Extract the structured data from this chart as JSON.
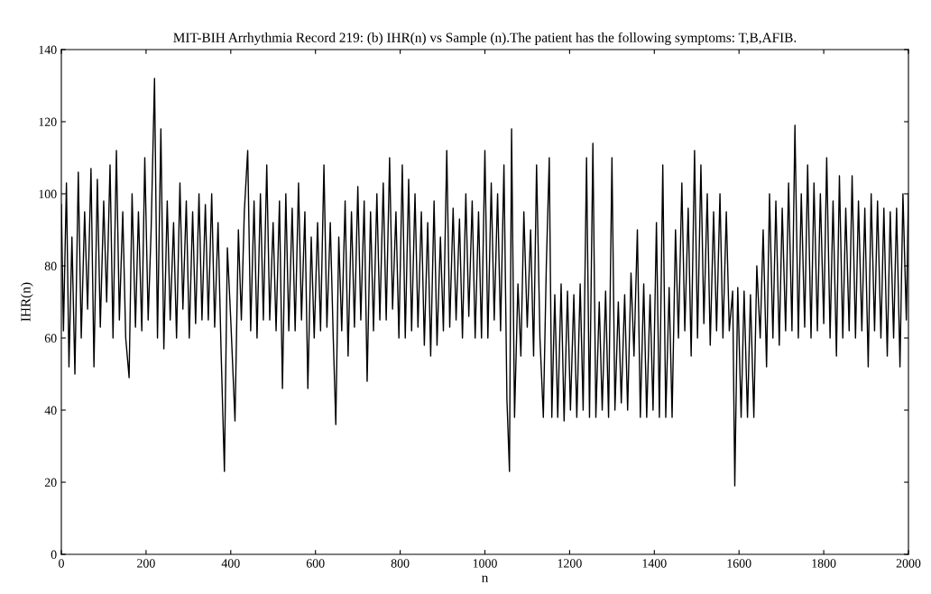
{
  "chart_data": {
    "type": "line",
    "title": "MIT-BIH Arrhythmia Record 219: (b) IHR(n) vs Sample (n).The patient has the following symptoms: T,B,AFIB.",
    "xlabel": "n",
    "ylabel": "IHR(n)",
    "xlim": [
      0,
      2000
    ],
    "ylim": [
      0,
      140
    ],
    "xticks": [
      0,
      200,
      400,
      600,
      800,
      1000,
      1200,
      1400,
      1600,
      1800,
      2000
    ],
    "yticks": [
      0,
      20,
      40,
      60,
      80,
      100,
      120,
      140
    ],
    "grid": false,
    "legend": false,
    "marker": "none",
    "line_style": "solid",
    "series": [
      {
        "color": "#000000",
        "x": [
          0,
          5,
          12,
          18,
          25,
          32,
          40,
          47,
          55,
          62,
          70,
          77,
          85,
          92,
          100,
          107,
          115,
          122,
          130,
          137,
          145,
          152,
          160,
          167,
          175,
          182,
          190,
          197,
          205,
          212,
          220,
          227,
          235,
          242,
          250,
          257,
          265,
          272,
          280,
          287,
          295,
          302,
          310,
          317,
          325,
          332,
          340,
          347,
          355,
          362,
          370,
          377,
          385,
          392,
          400,
          410,
          418,
          425,
          432,
          440,
          447,
          455,
          462,
          470,
          477,
          485,
          492,
          500,
          507,
          515,
          522,
          530,
          537,
          545,
          552,
          560,
          567,
          575,
          582,
          590,
          597,
          605,
          612,
          620,
          627,
          635,
          642,
          648,
          655,
          662,
          670,
          677,
          685,
          692,
          700,
          707,
          715,
          722,
          730,
          737,
          745,
          752,
          760,
          767,
          775,
          782,
          790,
          797,
          805,
          812,
          820,
          827,
          835,
          842,
          850,
          857,
          865,
          872,
          880,
          887,
          895,
          902,
          910,
          917,
          925,
          932,
          940,
          947,
          955,
          962,
          970,
          977,
          985,
          992,
          1000,
          1007,
          1015,
          1022,
          1030,
          1037,
          1045,
          1052,
          1058,
          1063,
          1070,
          1078,
          1085,
          1092,
          1100,
          1108,
          1115,
          1122,
          1130,
          1138,
          1145,
          1152,
          1158,
          1165,
          1172,
          1180,
          1187,
          1195,
          1202,
          1210,
          1217,
          1225,
          1232,
          1240,
          1247,
          1255,
          1262,
          1270,
          1277,
          1285,
          1292,
          1300,
          1307,
          1315,
          1322,
          1330,
          1337,
          1345,
          1352,
          1360,
          1367,
          1375,
          1382,
          1390,
          1397,
          1405,
          1412,
          1420,
          1427,
          1435,
          1442,
          1450,
          1457,
          1465,
          1472,
          1480,
          1487,
          1495,
          1502,
          1510,
          1517,
          1525,
          1532,
          1540,
          1547,
          1555,
          1562,
          1570,
          1577,
          1585,
          1590,
          1597,
          1605,
          1612,
          1620,
          1627,
          1635,
          1642,
          1650,
          1657,
          1665,
          1672,
          1680,
          1687,
          1695,
          1702,
          1710,
          1717,
          1725,
          1732,
          1740,
          1747,
          1755,
          1762,
          1770,
          1777,
          1785,
          1792,
          1800,
          1807,
          1815,
          1822,
          1830,
          1837,
          1845,
          1852,
          1860,
          1867,
          1875,
          1882,
          1890,
          1897,
          1905,
          1912,
          1920,
          1927,
          1935,
          1942,
          1950,
          1957,
          1965,
          1972,
          1980,
          1987,
          1995,
          2000
        ],
        "values": [
          97,
          62,
          103,
          52,
          88,
          50,
          106,
          60,
          95,
          68,
          107,
          52,
          104,
          63,
          98,
          70,
          108,
          60,
          112,
          65,
          95,
          60,
          49,
          100,
          63,
          95,
          62,
          110,
          65,
          90,
          132,
          60,
          118,
          57,
          98,
          65,
          92,
          60,
          103,
          68,
          98,
          60,
          95,
          64,
          100,
          65,
          97,
          65,
          100,
          63,
          92,
          57,
          23,
          85,
          65,
          37,
          90,
          65,
          95,
          112,
          62,
          98,
          60,
          100,
          65,
          108,
          65,
          92,
          62,
          98,
          46,
          100,
          62,
          96,
          62,
          103,
          65,
          95,
          46,
          88,
          60,
          92,
          62,
          108,
          63,
          92,
          60,
          36,
          88,
          62,
          98,
          55,
          95,
          63,
          102,
          65,
          98,
          48,
          95,
          62,
          100,
          65,
          103,
          65,
          110,
          68,
          95,
          60,
          108,
          60,
          104,
          62,
          100,
          63,
          95,
          58,
          92,
          55,
          98,
          58,
          88,
          62,
          112,
          63,
          96,
          65,
          93,
          60,
          100,
          66,
          98,
          60,
          95,
          60,
          112,
          60,
          103,
          65,
          100,
          62,
          108,
          43,
          23,
          118,
          38,
          75,
          55,
          95,
          63,
          90,
          55,
          108,
          60,
          38,
          80,
          110,
          38,
          72,
          38,
          75,
          37,
          73,
          40,
          72,
          38,
          75,
          40,
          110,
          38,
          114,
          38,
          70,
          40,
          73,
          38,
          110,
          40,
          70,
          42,
          72,
          40,
          78,
          55,
          90,
          38,
          75,
          38,
          72,
          40,
          92,
          38,
          108,
          38,
          74,
          38,
          90,
          60,
          103,
          62,
          96,
          55,
          112,
          60,
          108,
          64,
          100,
          58,
          95,
          62,
          100,
          60,
          95,
          62,
          73,
          19,
          74,
          38,
          73,
          38,
          72,
          38,
          80,
          60,
          90,
          52,
          100,
          60,
          98,
          58,
          96,
          62,
          103,
          62,
          119,
          60,
          100,
          63,
          108,
          60,
          103,
          62,
          100,
          64,
          110,
          60,
          98,
          55,
          105,
          60,
          96,
          62,
          105,
          60,
          98,
          62,
          96,
          52,
          100,
          62,
          98,
          60,
          96,
          55,
          95,
          60,
          96,
          52,
          100,
          65,
          100
        ]
      }
    ]
  }
}
